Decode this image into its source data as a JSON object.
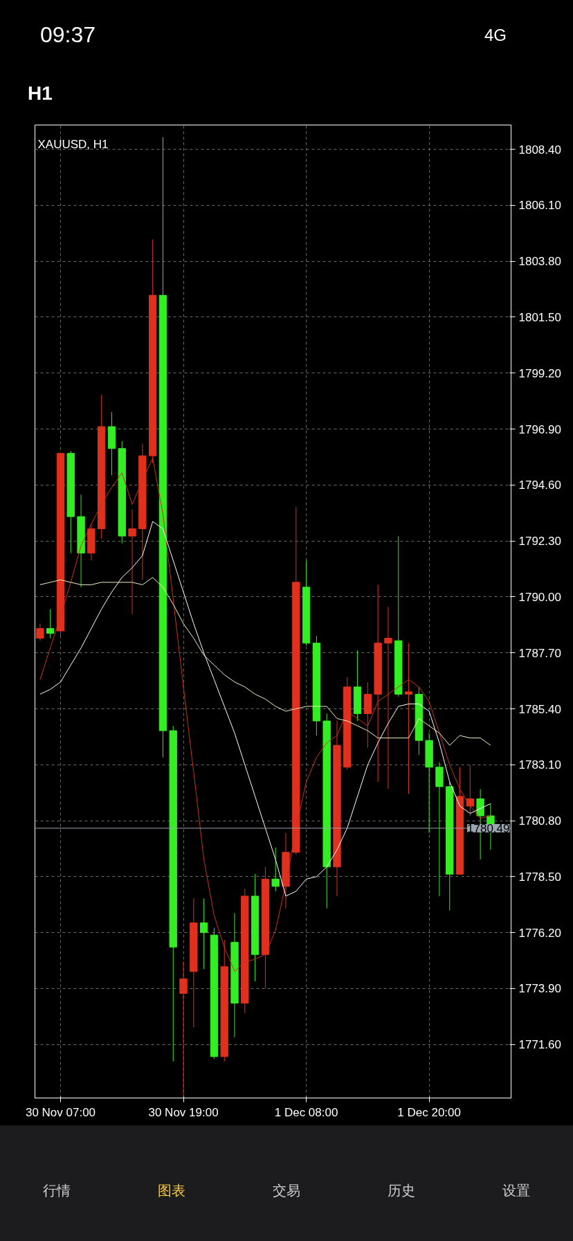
{
  "chart_data": {
    "type": "candlestick",
    "title": "XAUUSD, H1",
    "categories": [
      null,
      null,
      "30 Nov 07:00",
      null,
      null,
      null,
      null,
      null,
      null,
      null,
      null,
      null,
      null,
      null,
      "30 Nov 19:00",
      null,
      null,
      null,
      null,
      null,
      null,
      null,
      null,
      null,
      null,
      null,
      "1 Dec 08:00",
      null,
      null,
      null,
      null,
      null,
      null,
      null,
      null,
      null,
      null,
      null,
      "1 Dec 20:00",
      null,
      null,
      null,
      null,
      null,
      null
    ],
    "ohlc": [
      [
        1788.3,
        1788.9,
        1788.2,
        1788.7
      ],
      [
        1788.7,
        1789.5,
        1788.3,
        1788.5
      ],
      [
        1788.6,
        1795.9,
        1788.4,
        1795.9
      ],
      [
        1795.9,
        1796.0,
        1791.8,
        1793.3
      ],
      [
        1793.3,
        1794.2,
        1790.4,
        1791.8
      ],
      [
        1791.8,
        1793.0,
        1791.5,
        1792.8
      ],
      [
        1792.8,
        1798.3,
        1792.4,
        1797.0
      ],
      [
        1797.0,
        1797.6,
        1795.0,
        1796.1
      ],
      [
        1796.1,
        1796.4,
        1792.2,
        1792.5
      ],
      [
        1792.5,
        1793.6,
        1789.3,
        1792.8
      ],
      [
        1792.8,
        1796.3,
        1790.7,
        1795.8
      ],
      [
        1795.8,
        1804.7,
        1795.5,
        1802.4
      ],
      [
        1802.4,
        1808.9,
        1783.4,
        1784.5
      ],
      [
        1784.5,
        1784.7,
        1770.9,
        1775.6
      ],
      [
        1773.7,
        1775.0,
        1769.5,
        1774.3
      ],
      [
        1774.6,
        1777.6,
        1772.3,
        1776.6
      ],
      [
        1776.6,
        1777.6,
        1774.7,
        1776.2
      ],
      [
        1776.1,
        1776.4,
        1771.0,
        1771.1
      ],
      [
        1771.1,
        1775.9,
        1770.9,
        1774.8
      ],
      [
        1775.8,
        1777.0,
        1771.9,
        1773.3
      ],
      [
        1773.3,
        1778.0,
        1772.9,
        1777.7
      ],
      [
        1777.7,
        1778.6,
        1774.2,
        1775.3
      ],
      [
        1775.3,
        1778.9,
        1773.9,
        1778.4
      ],
      [
        1778.4,
        1779.7,
        1777.9,
        1778.1
      ],
      [
        1778.1,
        1780.3,
        1777.2,
        1779.5
      ],
      [
        1779.5,
        1793.7,
        1779.4,
        1790.6
      ],
      [
        1790.4,
        1791.5,
        1788.0,
        1788.1
      ],
      [
        1788.1,
        1788.4,
        1784.3,
        1784.9
      ],
      [
        1784.9,
        1785.2,
        1777.2,
        1778.9
      ],
      [
        1778.9,
        1784.9,
        1777.7,
        1783.9
      ],
      [
        1783.0,
        1786.7,
        1782.9,
        1786.3
      ],
      [
        1786.3,
        1787.8,
        1784.9,
        1785.2
      ],
      [
        1785.2,
        1786.5,
        1783.8,
        1786.0
      ],
      [
        1786.0,
        1790.5,
        1782.4,
        1788.1
      ],
      [
        1788.1,
        1789.6,
        1782.1,
        1788.3
      ],
      [
        1788.2,
        1792.5,
        1785.9,
        1786.0
      ],
      [
        1786.0,
        1788.1,
        1781.9,
        1786.1
      ],
      [
        1786.0,
        1786.3,
        1783.5,
        1784.1
      ],
      [
        1784.1,
        1784.4,
        1780.3,
        1783.0
      ],
      [
        1783.0,
        1783.2,
        1777.7,
        1782.2
      ],
      [
        1782.2,
        1782.4,
        1777.1,
        1778.6
      ],
      [
        1778.6,
        1783.0,
        1778.6,
        1781.8
      ],
      [
        1781.4,
        1783.1,
        1781.0,
        1781.7
      ],
      [
        1781.7,
        1782.1,
        1779.2,
        1781.0
      ],
      [
        1781.0,
        1781.5,
        1779.6,
        1780.49
      ]
    ],
    "colors": [
      "#e0301e",
      "#33ee22",
      "#e0301e",
      "#33ee22",
      "#33ee22",
      "#e0301e",
      "#e0301e",
      "#33ee22",
      "#33ee22",
      "#e0301e",
      "#e0301e",
      "#e0301e",
      "#33ee22",
      "#33ee22",
      "#e0301e",
      "#e0301e",
      "#33ee22",
      "#33ee22",
      "#e0301e",
      "#33ee22",
      "#e0301e",
      "#33ee22",
      "#e0301e",
      "#33ee22",
      "#e0301e",
      "#e0301e",
      "#33ee22",
      "#33ee22",
      "#33ee22",
      "#e0301e",
      "#e0301e",
      "#33ee22",
      "#e0301e",
      "#e0301e",
      "#e0301e",
      "#33ee22",
      "#e0301e",
      "#33ee22",
      "#33ee22",
      "#33ee22",
      "#33ee22",
      "#e0301e",
      "#e0301e",
      "#33ee22",
      "#33ee22"
    ],
    "series": [
      {
        "type": "line",
        "color": "#c8321e",
        "values": [
          1786.6,
          1787.9,
          1789.2,
          1790.6,
          1792.1,
          1793.0,
          1793.8,
          1794.5,
          1795.1,
          1793.8,
          1794.8,
          1795.7,
          1793.4,
          1789.9,
          1786.3,
          1782.8,
          1779.2,
          1776.9,
          1775.6,
          1774.6,
          1775.0,
          1775.1,
          1775.3,
          1776.3,
          1778.2,
          1780.5,
          1782.4,
          1783.4,
          1784.0,
          1784.3,
          1785.3,
          1785.0,
          1784.7,
          1785.7,
          1786.0,
          1786.3,
          1786.6,
          1786.3,
          1785.7,
          1784.4,
          1783.1,
          1782.1,
          1781.4,
          1780.9,
          1781.0
        ]
      },
      {
        "type": "line",
        "color": "#ffffff",
        "values": [
          1786.0,
          1786.2,
          1786.5,
          1787.2,
          1787.9,
          1788.7,
          1789.5,
          1790.2,
          1790.8,
          1791.2,
          1791.7,
          1793.1,
          1792.8,
          1791.5,
          1790.2,
          1788.9,
          1787.7,
          1786.6,
          1785.5,
          1784.4,
          1783.1,
          1781.8,
          1780.5,
          1779.2,
          1777.7,
          1777.9,
          1778.4,
          1778.5,
          1778.9,
          1779.6,
          1780.5,
          1781.8,
          1783.1,
          1784.0,
          1784.8,
          1785.5,
          1785.6,
          1785.6,
          1785.3,
          1784.0,
          1782.4,
          1781.4,
          1781.1,
          1781.3,
          1781.5
        ]
      },
      {
        "type": "line",
        "color": "#f2efc0",
        "values": [
          1790.5,
          1790.6,
          1790.7,
          1790.6,
          1790.5,
          1790.5,
          1790.6,
          1790.6,
          1790.6,
          1790.6,
          1790.5,
          1790.8,
          1790.4,
          1789.7,
          1788.9,
          1788.3,
          1787.6,
          1787.2,
          1786.8,
          1786.5,
          1786.3,
          1786.0,
          1785.8,
          1785.5,
          1785.3,
          1785.4,
          1785.5,
          1785.5,
          1785.5,
          1785.0,
          1784.9,
          1784.7,
          1784.5,
          1784.2,
          1784.2,
          1784.2,
          1784.2,
          1785.0,
          1784.7,
          1784.4,
          1783.9,
          1784.3,
          1784.2,
          1784.2,
          1783.9
        ]
      }
    ],
    "ylim": [
      1769.4,
      1809.4
    ],
    "yticks": [
      {
        "value": 1771.6,
        "label": "1771.60"
      },
      {
        "value": 1773.9,
        "label": "1773.90"
      },
      {
        "value": 1776.2,
        "label": "1776.20"
      },
      {
        "value": 1778.5,
        "label": "1778.50"
      },
      {
        "value": 1780.8,
        "label": "1780.80"
      },
      {
        "value": 1783.1,
        "label": "1783.10"
      },
      {
        "value": 1785.4,
        "label": "1785.40"
      },
      {
        "value": 1787.7,
        "label": "1787.70"
      },
      {
        "value": 1790.0,
        "label": "1790.00"
      },
      {
        "value": 1792.3,
        "label": "1792.30"
      },
      {
        "value": 1794.6,
        "label": "1794.60"
      },
      {
        "value": 1796.9,
        "label": "1796.90"
      },
      {
        "value": 1799.2,
        "label": "1799.20"
      },
      {
        "value": 1801.5,
        "label": "1801.50"
      },
      {
        "value": 1803.8,
        "label": "1803.80"
      },
      {
        "value": 1806.1,
        "label": "1806.10"
      },
      {
        "value": 1808.4,
        "label": "1808.40"
      }
    ],
    "ref_lines": [
      {
        "axis": "y",
        "value": 1780.49,
        "label": "1780.49",
        "color": "#9aa5b0"
      }
    ],
    "grid": true,
    "annotations": [
      "09:37",
      "4G",
      "H1",
      "行情",
      "图表",
      "交易",
      "历史",
      "设置"
    ]
  }
}
